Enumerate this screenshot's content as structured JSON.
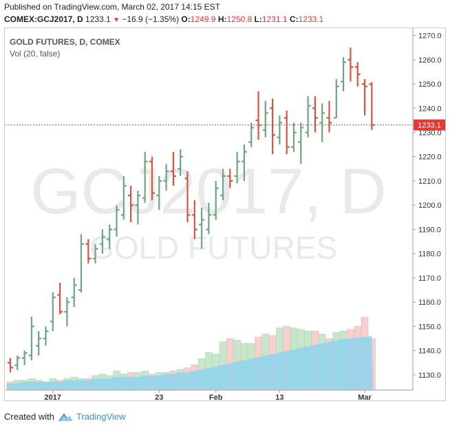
{
  "header": {
    "published": "Published on TradingView.com, March 02, 2017 14:15 EST",
    "symbol": "COMEX:GCJ2017, D",
    "last": "1233.1",
    "change": "−16.9 (−1.35%)",
    "o_label": "O:",
    "o_value": "1249.9",
    "h_label": "H:",
    "h_value": "1250.8",
    "l_label": "L:",
    "l_value": "1231.1",
    "c_label": "C:",
    "c_value": "1233.1"
  },
  "legend": {
    "title": "GOLD FUTURES, D, COMEX",
    "volume": "Vol (20, false)"
  },
  "watermark": {
    "line1": "GCJ2017, D",
    "line2": "GOLD FUTURES"
  },
  "footer": {
    "created": "Created with",
    "brand": "TradingView"
  },
  "colors": {
    "up": "#6ba583",
    "down": "#d75442",
    "vol_up": "#c8e6c9",
    "vol_down": "#f5d0d0",
    "ma_fill": "#8fd3ef",
    "price_line": "#e53935"
  },
  "chart_data": {
    "type": "ohlc",
    "y_range": [
      1124,
      1273
    ],
    "y_ticks": [
      1130,
      1140,
      1150,
      1160,
      1170,
      1180,
      1190,
      1200,
      1210,
      1220,
      1230,
      1240,
      1250,
      1260,
      1270
    ],
    "x_labels": [
      "2017",
      "23",
      "Feb",
      "13",
      "Mar"
    ],
    "last_price_label": "1233.1",
    "bars": [
      {
        "o": 1135,
        "h": 1137,
        "l": 1131,
        "c": 1133
      },
      {
        "o": 1134,
        "h": 1138,
        "l": 1132,
        "c": 1137
      },
      {
        "o": 1137,
        "h": 1140,
        "l": 1134,
        "c": 1139
      },
      {
        "o": 1138,
        "h": 1154,
        "l": 1136,
        "c": 1150
      },
      {
        "o": 1142,
        "h": 1148,
        "l": 1138,
        "c": 1145
      },
      {
        "o": 1145,
        "h": 1150,
        "l": 1142,
        "c": 1148
      },
      {
        "o": 1152,
        "h": 1164,
        "l": 1148,
        "c": 1162
      },
      {
        "o": 1163,
        "h": 1168,
        "l": 1155,
        "c": 1156
      },
      {
        "o": 1156,
        "h": 1162,
        "l": 1150,
        "c": 1160
      },
      {
        "o": 1162,
        "h": 1170,
        "l": 1158,
        "c": 1167
      },
      {
        "o": 1165,
        "h": 1188,
        "l": 1164,
        "c": 1184
      },
      {
        "o": 1184,
        "h": 1186,
        "l": 1176,
        "c": 1178
      },
      {
        "o": 1178,
        "h": 1184,
        "l": 1176,
        "c": 1182
      },
      {
        "o": 1184,
        "h": 1190,
        "l": 1180,
        "c": 1187
      },
      {
        "o": 1186,
        "h": 1192,
        "l": 1182,
        "c": 1190
      },
      {
        "o": 1190,
        "h": 1200,
        "l": 1187,
        "c": 1198
      },
      {
        "o": 1196,
        "h": 1212,
        "l": 1194,
        "c": 1208
      },
      {
        "o": 1204,
        "h": 1208,
        "l": 1193,
        "c": 1200
      },
      {
        "o": 1200,
        "h": 1206,
        "l": 1192,
        "c": 1204
      },
      {
        "o": 1203,
        "h": 1222,
        "l": 1201,
        "c": 1218
      },
      {
        "o": 1218,
        "h": 1220,
        "l": 1202,
        "c": 1205
      },
      {
        "o": 1204,
        "h": 1212,
        "l": 1198,
        "c": 1210
      },
      {
        "o": 1210,
        "h": 1217,
        "l": 1206,
        "c": 1214
      },
      {
        "o": 1214,
        "h": 1222,
        "l": 1208,
        "c": 1212
      },
      {
        "o": 1215,
        "h": 1223,
        "l": 1212,
        "c": 1220
      },
      {
        "o": 1211,
        "h": 1214,
        "l": 1193,
        "c": 1196
      },
      {
        "o": 1196,
        "h": 1202,
        "l": 1186,
        "c": 1190
      },
      {
        "o": 1192,
        "h": 1199,
        "l": 1182,
        "c": 1194
      },
      {
        "o": 1190,
        "h": 1201,
        "l": 1188,
        "c": 1196
      },
      {
        "o": 1196,
        "h": 1210,
        "l": 1194,
        "c": 1207
      },
      {
        "o": 1204,
        "h": 1215,
        "l": 1202,
        "c": 1212
      },
      {
        "o": 1212,
        "h": 1215,
        "l": 1207,
        "c": 1210
      },
      {
        "o": 1212,
        "h": 1222,
        "l": 1209,
        "c": 1218
      },
      {
        "o": 1218,
        "h": 1225,
        "l": 1210,
        "c": 1222
      },
      {
        "o": 1226,
        "h": 1234,
        "l": 1224,
        "c": 1232
      },
      {
        "o": 1235,
        "h": 1247,
        "l": 1227,
        "c": 1233
      },
      {
        "o": 1231,
        "h": 1243,
        "l": 1228,
        "c": 1238
      },
      {
        "o": 1240,
        "h": 1244,
        "l": 1221,
        "c": 1229
      },
      {
        "o": 1228,
        "h": 1237,
        "l": 1225,
        "c": 1234
      },
      {
        "o": 1236,
        "h": 1239,
        "l": 1221,
        "c": 1224
      },
      {
        "o": 1224,
        "h": 1234,
        "l": 1222,
        "c": 1230
      },
      {
        "o": 1226,
        "h": 1234,
        "l": 1217,
        "c": 1232
      },
      {
        "o": 1230,
        "h": 1245,
        "l": 1228,
        "c": 1241
      },
      {
        "o": 1240,
        "h": 1245,
        "l": 1230,
        "c": 1236
      },
      {
        "o": 1234,
        "h": 1242,
        "l": 1226,
        "c": 1238
      },
      {
        "o": 1236,
        "h": 1243,
        "l": 1230,
        "c": 1234
      },
      {
        "o": 1236,
        "h": 1252,
        "l": 1236,
        "c": 1249
      },
      {
        "o": 1251,
        "h": 1261,
        "l": 1247,
        "c": 1259
      },
      {
        "o": 1260,
        "h": 1265,
        "l": 1251,
        "c": 1257
      },
      {
        "o": 1257,
        "h": 1259,
        "l": 1249,
        "c": 1254
      },
      {
        "o": 1250,
        "h": 1252,
        "l": 1237,
        "c": 1249
      },
      {
        "o": 1249.9,
        "h": 1250.8,
        "l": 1231.1,
        "c": 1233.1
      }
    ],
    "volume": [
      5,
      6,
      6,
      7,
      6,
      5,
      7,
      6,
      7,
      8,
      7,
      7,
      9,
      10,
      9,
      12,
      10,
      11,
      11,
      12,
      10,
      11,
      11,
      12,
      13,
      14,
      16,
      20,
      24,
      23,
      31,
      33,
      32,
      30,
      30,
      34,
      36,
      35,
      40,
      41,
      40,
      39,
      38,
      38,
      36,
      33,
      37,
      38,
      39,
      41,
      47,
      33
    ],
    "volume_ma": [
      4,
      4,
      5,
      5,
      5,
      5,
      5,
      5,
      6,
      6,
      6,
      6,
      7,
      7,
      7,
      8,
      8,
      8,
      8,
      9,
      9,
      9,
      10,
      10,
      11,
      11,
      12,
      13,
      14,
      15,
      16,
      17,
      18,
      19,
      20,
      21,
      22,
      23,
      24,
      25,
      26,
      27,
      28,
      29,
      30,
      31,
      32,
      33,
      33,
      34,
      34,
      35
    ]
  }
}
